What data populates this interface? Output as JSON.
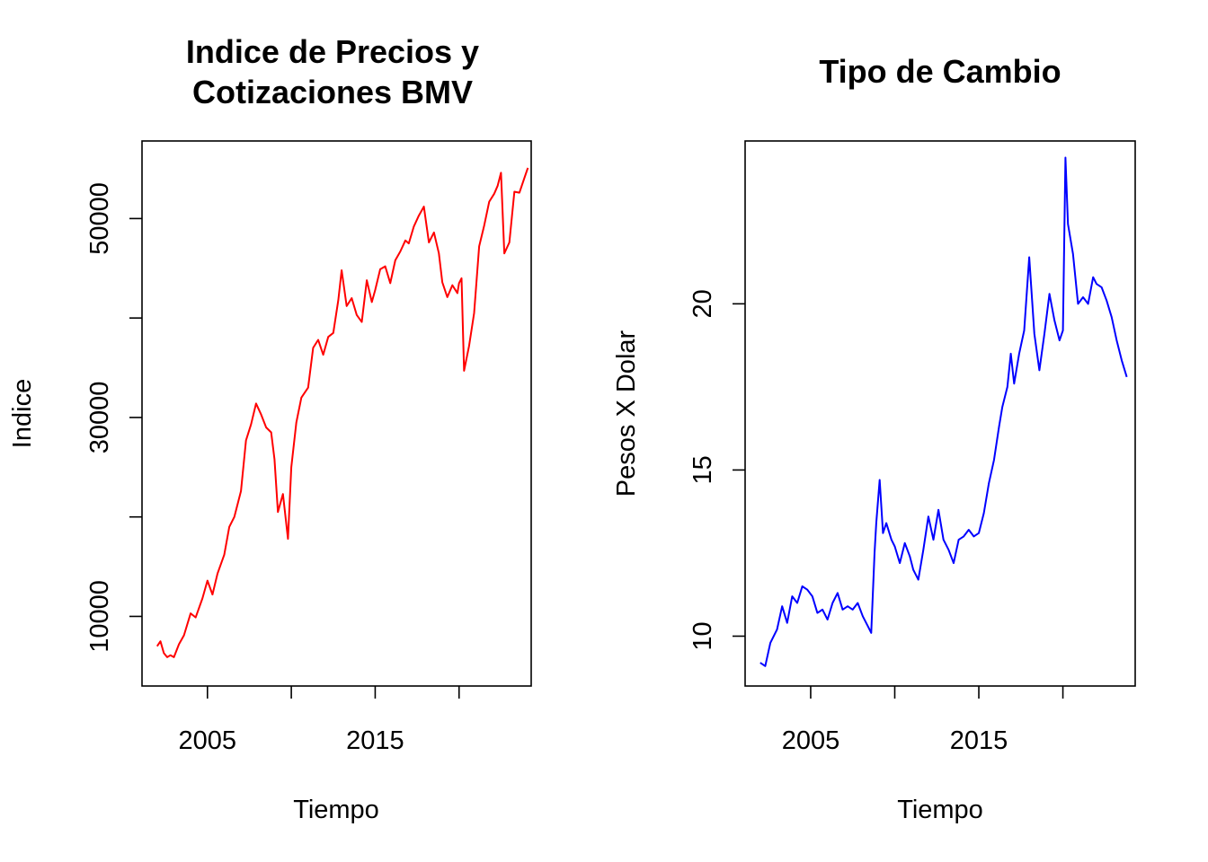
{
  "chart_data": [
    {
      "type": "line",
      "title_lines": [
        "Indice de Precios y",
        "Cotizaciones BMV"
      ],
      "xlabel": "Tiempo",
      "ylabel": "Indice",
      "xlim": [
        2001.1,
        2024.3
      ],
      "ylim": [
        3000,
        57800
      ],
      "x_ticks": [
        2005,
        2010,
        2015,
        2020
      ],
      "x_tick_labels": [
        "2005",
        "",
        "2015",
        ""
      ],
      "y_ticks": [
        10000,
        20000,
        30000,
        40000,
        50000
      ],
      "y_tick_labels": [
        "10000",
        "",
        "30000",
        "",
        "50000"
      ],
      "color": "#ff0000",
      "grid": false,
      "legend": "none",
      "series": [
        {
          "x": [
            2002.0,
            2002.2,
            2002.4,
            2002.6,
            2002.8,
            2003.0,
            2003.3,
            2003.6,
            2004.0,
            2004.3,
            2004.7,
            2005.0,
            2005.3,
            2005.6,
            2006.0,
            2006.3,
            2006.6,
            2007.0,
            2007.3,
            2007.6,
            2007.9,
            2008.2,
            2008.5,
            2008.8,
            2009.0,
            2009.2,
            2009.5,
            2009.8,
            2010.0,
            2010.3,
            2010.6,
            2011.0,
            2011.3,
            2011.6,
            2011.9,
            2012.2,
            2012.5,
            2012.8,
            2013.0,
            2013.3,
            2013.6,
            2013.9,
            2014.2,
            2014.5,
            2014.8,
            2015.0,
            2015.3,
            2015.6,
            2015.9,
            2016.2,
            2016.5,
            2016.8,
            2017.0,
            2017.3,
            2017.6,
            2017.9,
            2018.2,
            2018.5,
            2018.8,
            2019.0,
            2019.3,
            2019.6,
            2019.9,
            2020.0,
            2020.15,
            2020.3,
            2020.6,
            2020.9,
            2021.2,
            2021.5,
            2021.8,
            2022.1,
            2022.3,
            2022.5,
            2022.7,
            2023.0,
            2023.3,
            2023.6,
            2023.9,
            2024.1
          ],
          "y": [
            7000,
            7500,
            6300,
            5900,
            6100,
            5900,
            7200,
            8100,
            10300,
            9900,
            11800,
            13600,
            12200,
            14300,
            16200,
            19000,
            20000,
            22600,
            27700,
            29300,
            31400,
            30300,
            29000,
            28500,
            25800,
            20500,
            22300,
            17800,
            25000,
            29500,
            32000,
            33000,
            37000,
            37800,
            36300,
            38100,
            38500,
            41800,
            44800,
            41200,
            42000,
            40300,
            39600,
            43800,
            41600,
            42800,
            44900,
            45200,
            43500,
            45800,
            46700,
            47800,
            47500,
            49200,
            50300,
            51200,
            47600,
            48600,
            46500,
            43600,
            42100,
            43300,
            42500,
            43500,
            44000,
            34700,
            37200,
            40500,
            47200,
            49300,
            51700,
            52500,
            53300,
            54600,
            46500,
            47600,
            52700,
            52600,
            54100,
            55100
          ]
        }
      ]
    },
    {
      "type": "line",
      "title_lines": [
        "Tipo de Cambio"
      ],
      "xlabel": "Tiempo",
      "ylabel": "Pesos X Dolar",
      "xlim": [
        2001.1,
        2024.3
      ],
      "ylim": [
        8.5,
        24.9
      ],
      "x_ticks": [
        2005,
        2010,
        2015,
        2020
      ],
      "x_tick_labels": [
        "2005",
        "",
        "2015",
        ""
      ],
      "y_ticks": [
        10,
        15,
        20
      ],
      "y_tick_labels": [
        "10",
        "15",
        "20"
      ],
      "color": "#0000ff",
      "grid": false,
      "legend": "none",
      "series": [
        {
          "x": [
            2002.0,
            2002.3,
            2002.6,
            2003.0,
            2003.3,
            2003.6,
            2003.9,
            2004.2,
            2004.5,
            2004.8,
            2005.1,
            2005.4,
            2005.7,
            2006.0,
            2006.3,
            2006.6,
            2006.9,
            2007.2,
            2007.5,
            2007.8,
            2008.1,
            2008.4,
            2008.6,
            2008.8,
            2008.9,
            2009.1,
            2009.3,
            2009.5,
            2009.8,
            2010.0,
            2010.3,
            2010.6,
            2010.9,
            2011.1,
            2011.4,
            2011.7,
            2012.0,
            2012.3,
            2012.6,
            2012.9,
            2013.2,
            2013.5,
            2013.8,
            2014.1,
            2014.4,
            2014.7,
            2015.0,
            2015.3,
            2015.6,
            2015.9,
            2016.2,
            2016.4,
            2016.7,
            2016.9,
            2017.1,
            2017.4,
            2017.7,
            2018.0,
            2018.3,
            2018.6,
            2018.9,
            2019.2,
            2019.5,
            2019.8,
            2020.0,
            2020.15,
            2020.3,
            2020.6,
            2020.9,
            2021.2,
            2021.5,
            2021.8,
            2022.0,
            2022.3,
            2022.6,
            2022.9,
            2023.2,
            2023.5,
            2023.8
          ],
          "y": [
            9.2,
            9.1,
            9.8,
            10.2,
            10.9,
            10.4,
            11.2,
            11.0,
            11.5,
            11.4,
            11.2,
            10.7,
            10.8,
            10.5,
            11.0,
            11.3,
            10.8,
            10.9,
            10.8,
            11.0,
            10.6,
            10.3,
            10.1,
            12.5,
            13.4,
            14.7,
            13.1,
            13.4,
            12.9,
            12.7,
            12.2,
            12.8,
            12.4,
            12.0,
            11.7,
            12.6,
            13.6,
            12.9,
            13.8,
            12.9,
            12.6,
            12.2,
            12.9,
            13.0,
            13.2,
            13.0,
            13.1,
            13.7,
            14.6,
            15.3,
            16.3,
            16.9,
            17.5,
            18.5,
            17.6,
            18.5,
            19.2,
            21.4,
            19.1,
            18.0,
            19.1,
            20.3,
            19.5,
            18.9,
            19.2,
            24.4,
            22.4,
            21.5,
            20.0,
            20.2,
            20.0,
            20.8,
            20.6,
            20.5,
            20.1,
            19.6,
            18.9,
            18.3,
            17.8
          ]
        }
      ]
    }
  ]
}
